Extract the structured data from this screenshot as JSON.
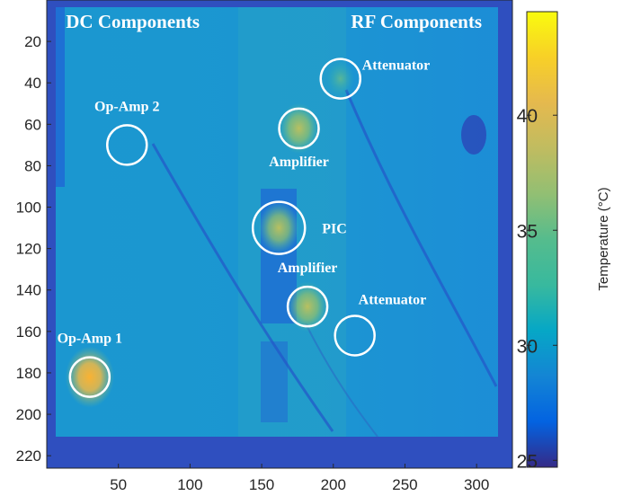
{
  "chart_data": {
    "type": "heatmap",
    "title": "",
    "xlabel": "",
    "ylabel": "",
    "xlim": [
      0,
      325
    ],
    "ylim": [
      226,
      0
    ],
    "x_ticks": [
      50,
      100,
      150,
      200,
      250,
      300
    ],
    "y_ticks": [
      20,
      40,
      60,
      80,
      100,
      120,
      140,
      160,
      180,
      200,
      220
    ],
    "colorbar": {
      "label": "Temperature (°C)",
      "range": [
        24.7,
        44.5
      ],
      "ticks": [
        25,
        30,
        35,
        40
      ],
      "colormap": "parula"
    },
    "section_labels": [
      {
        "text": "DC Components",
        "x": 60,
        "y": 10
      },
      {
        "text": "RF Components",
        "x": 258,
        "y": 10
      }
    ],
    "components": [
      {
        "label": "Attenuator",
        "x": 205,
        "y": 38
      },
      {
        "label": "Op-Amp 2",
        "x": 56,
        "y": 70
      },
      {
        "label": "Amplifier",
        "x": 176,
        "y": 62
      },
      {
        "label": "PIC",
        "x": 162,
        "y": 110
      },
      {
        "label": "Amplifier",
        "x": 182,
        "y": 148
      },
      {
        "label": "Attenuator",
        "x": 215,
        "y": 162
      },
      {
        "label": "Op-Amp 1",
        "x": 30,
        "y": 182
      }
    ],
    "hotspots": [
      {
        "name": "Op-Amp 1",
        "x": 30,
        "y": 182,
        "temperature": 42
      },
      {
        "name": "Amplifier",
        "x": 176,
        "y": 62,
        "temperature": 35
      },
      {
        "name": "PIC",
        "x": 162,
        "y": 110,
        "temperature": 35
      },
      {
        "name": "Amplifier",
        "x": 182,
        "y": 148,
        "temperature": 35
      },
      {
        "name": "Attenuator",
        "x": 205,
        "y": 38,
        "temperature": 33
      }
    ],
    "background_temperature": 31,
    "grid": false
  }
}
